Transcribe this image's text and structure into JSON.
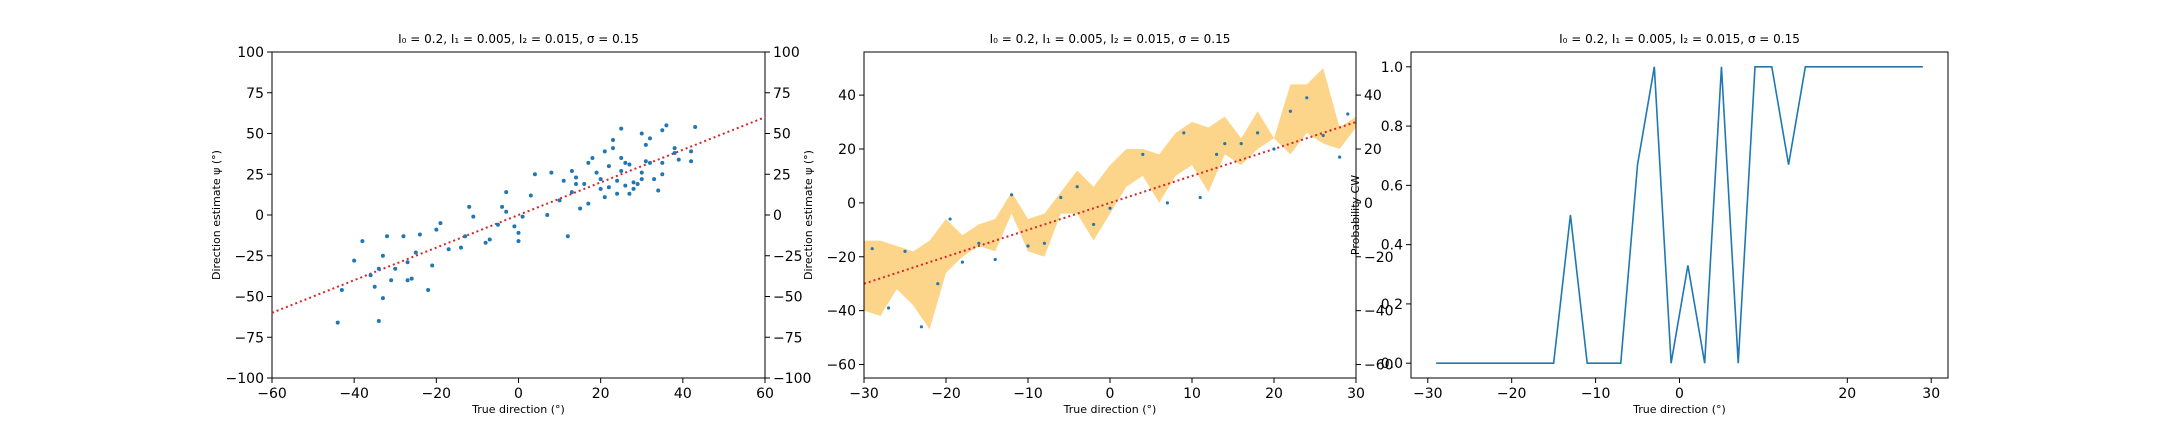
{
  "chart_data": [
    {
      "type": "scatter",
      "title": "I₀ = 0.2, I₁ = 0.005, I₂ = 0.015, σ = 0.15",
      "xlabel": "True direction (°)",
      "ylabel": "Direction estimate ψ (°)",
      "xlim": [
        -60,
        60
      ],
      "ylim": [
        -100,
        100
      ],
      "xticks": [
        "−60",
        "−40",
        "−20",
        "0",
        "20",
        "40",
        "60"
      ],
      "yticks": [
        "−100",
        "−75",
        "−50",
        "−25",
        "0",
        "25",
        "50",
        "75",
        "100"
      ],
      "yticks_right": [
        "−100",
        "−75",
        "−50",
        "−25",
        "0",
        "25",
        "50",
        "75",
        "100"
      ],
      "reference_line": {
        "slope": 1,
        "intercept": 0,
        "color": "#d62728",
        "style": "dotted"
      },
      "point_color": "#1f77b4",
      "points": [
        [
          -44,
          -66
        ],
        [
          -43,
          -46
        ],
        [
          -40,
          -28
        ],
        [
          -38,
          -16
        ],
        [
          -36,
          -37
        ],
        [
          -35,
          -44
        ],
        [
          -34,
          -65
        ],
        [
          -34,
          -33
        ],
        [
          -33,
          -51
        ],
        [
          -33,
          -25
        ],
        [
          -32,
          -13
        ],
        [
          -31,
          -40
        ],
        [
          -30,
          -33
        ],
        [
          -28,
          -13
        ],
        [
          -27,
          -40
        ],
        [
          -27,
          -29
        ],
        [
          -26,
          -39
        ],
        [
          -25,
          -23
        ],
        [
          -24,
          -12
        ],
        [
          -22,
          -46
        ],
        [
          -21,
          -31
        ],
        [
          -20,
          -9
        ],
        [
          -19,
          -5
        ],
        [
          -17,
          -21
        ],
        [
          -14,
          -20
        ],
        [
          -13,
          -13
        ],
        [
          -12,
          5
        ],
        [
          -11,
          -1
        ],
        [
          -8,
          -17
        ],
        [
          -7,
          -15
        ],
        [
          -5,
          -6
        ],
        [
          -4,
          5
        ],
        [
          -3,
          14
        ],
        [
          -3,
          2
        ],
        [
          -1,
          -7
        ],
        [
          0,
          -16
        ],
        [
          0,
          -11
        ],
        [
          1,
          -1
        ],
        [
          3,
          12
        ],
        [
          4,
          25
        ],
        [
          7,
          0
        ],
        [
          8,
          26
        ],
        [
          10,
          9
        ],
        [
          11,
          21
        ],
        [
          12,
          -13
        ],
        [
          13,
          27
        ],
        [
          13,
          14
        ],
        [
          14,
          23
        ],
        [
          14,
          19
        ],
        [
          15,
          4
        ],
        [
          16,
          19
        ],
        [
          17,
          32
        ],
        [
          17,
          7
        ],
        [
          18,
          35
        ],
        [
          19,
          26
        ],
        [
          20,
          22
        ],
        [
          20,
          16
        ],
        [
          21,
          11
        ],
        [
          21,
          39
        ],
        [
          22,
          17
        ],
        [
          22,
          30
        ],
        [
          23,
          46
        ],
        [
          23,
          41
        ],
        [
          24,
          21
        ],
        [
          24,
          13
        ],
        [
          25,
          35
        ],
        [
          25,
          27
        ],
        [
          25,
          53
        ],
        [
          26,
          32
        ],
        [
          26,
          18
        ],
        [
          27,
          31
        ],
        [
          27,
          13
        ],
        [
          28,
          20
        ],
        [
          28,
          16
        ],
        [
          29,
          19
        ],
        [
          30,
          26
        ],
        [
          30,
          22
        ],
        [
          30,
          50
        ],
        [
          31,
          33
        ],
        [
          31,
          43
        ],
        [
          32,
          47
        ],
        [
          32,
          32
        ],
        [
          33,
          22
        ],
        [
          34,
          15
        ],
        [
          35,
          32
        ],
        [
          35,
          25
        ],
        [
          35,
          52
        ],
        [
          36,
          55
        ],
        [
          38,
          41
        ],
        [
          38,
          38
        ],
        [
          39,
          34
        ],
        [
          42,
          39
        ],
        [
          42,
          33
        ],
        [
          43,
          54
        ]
      ]
    },
    {
      "type": "line",
      "title": "I₀ = 0.2, I₁ = 0.005, I₂ = 0.015, σ = 0.15",
      "xlabel": "True direction (°)",
      "ylabel": "Direction estimate ψ (°)",
      "xlim": [
        -30,
        30
      ],
      "ylim": [
        -65,
        56
      ],
      "xticks": [
        "−30",
        "−20",
        "−10",
        "0",
        "10",
        "20",
        "30"
      ],
      "yticks": [
        "−60",
        "−40",
        "−20",
        "0",
        "20",
        "40"
      ],
      "yticks_right": [
        "−60",
        "−40",
        "−20",
        "0",
        "20",
        "40"
      ],
      "band_color": "#fdd58a",
      "point_color": "#1f77b4",
      "reference_line": {
        "slope": 1,
        "intercept": 0,
        "color": "#d62728",
        "style": "dotted"
      },
      "x": [
        -30,
        -28,
        -26,
        -24,
        -22,
        -20,
        -18,
        -16,
        -14,
        -12,
        -10,
        -8,
        -6,
        -4,
        -2,
        0,
        2,
        4,
        6,
        8,
        10,
        12,
        14,
        16,
        18,
        20,
        22,
        24,
        26,
        28,
        30
      ],
      "band_lower": [
        -40,
        -42,
        -32,
        -38,
        -47,
        -26,
        -20,
        -16,
        -18,
        -4,
        -18,
        -20,
        -4,
        -4,
        -14,
        -4,
        6,
        10,
        0,
        10,
        14,
        4,
        18,
        14,
        20,
        24,
        18,
        26,
        22,
        20,
        28
      ],
      "band_upper": [
        -14,
        -14,
        -16,
        -18,
        -14,
        -6,
        -12,
        -8,
        -6,
        4,
        -6,
        -4,
        4,
        12,
        6,
        14,
        20,
        20,
        18,
        26,
        30,
        28,
        32,
        24,
        34,
        24,
        44,
        44,
        50,
        28,
        32
      ],
      "points": [
        [
          -29,
          -17
        ],
        [
          -27,
          -39
        ],
        [
          -25,
          -18
        ],
        [
          -23,
          -46
        ],
        [
          -21,
          -30
        ],
        [
          -19.5,
          -6
        ],
        [
          -18,
          -22
        ],
        [
          -16,
          -15
        ],
        [
          -14,
          -21
        ],
        [
          -12,
          3
        ],
        [
          -10,
          -16
        ],
        [
          -8,
          -15
        ],
        [
          -6,
          2
        ],
        [
          -4,
          6
        ],
        [
          -2,
          -8
        ],
        [
          0,
          -2
        ],
        [
          4,
          18
        ],
        [
          7,
          0
        ],
        [
          9,
          26
        ],
        [
          11,
          2
        ],
        [
          13,
          18
        ],
        [
          14,
          22
        ],
        [
          16,
          22
        ],
        [
          18,
          26
        ],
        [
          20,
          20
        ],
        [
          22,
          34
        ],
        [
          24,
          39
        ],
        [
          26,
          25
        ],
        [
          28,
          17
        ],
        [
          29,
          33
        ]
      ]
    },
    {
      "type": "line",
      "title": "I₀ = 0.2, I₁ = 0.005, I₂ = 0.015, σ = 0.15",
      "xlabel": "True direction (°)",
      "ylabel": "Probability CW",
      "xlim": [
        -32,
        32
      ],
      "ylim": [
        -0.05,
        1.05
      ],
      "xticks": [
        "−30",
        "−20",
        "−10",
        "0",
        "20",
        "30"
      ],
      "xtick_values": [
        -30,
        -20,
        -10,
        0,
        20,
        30
      ],
      "ytick_values": [
        0,
        0.2,
        0.4,
        0.6,
        0.8,
        1.0
      ],
      "yticks": [
        "0.0",
        "0.2",
        "0.4",
        "0.6",
        "0.8",
        "1.0"
      ],
      "line_color": "#1f77b4",
      "x": [
        -29,
        -27,
        -25,
        -23,
        -21,
        -19,
        -17,
        -15,
        -13,
        -11,
        -9,
        -7,
        -5,
        -3,
        -1,
        1,
        3,
        5,
        7,
        9,
        11,
        13,
        15,
        17,
        19,
        21,
        23,
        25,
        27,
        29
      ],
      "y": [
        0,
        0,
        0,
        0,
        0,
        0,
        0,
        0,
        0.5,
        0,
        0,
        0,
        0.67,
        1,
        0,
        0.33,
        0,
        1,
        0,
        1,
        1,
        0.67,
        1,
        1,
        1,
        1,
        1,
        1,
        1,
        1
      ]
    }
  ]
}
